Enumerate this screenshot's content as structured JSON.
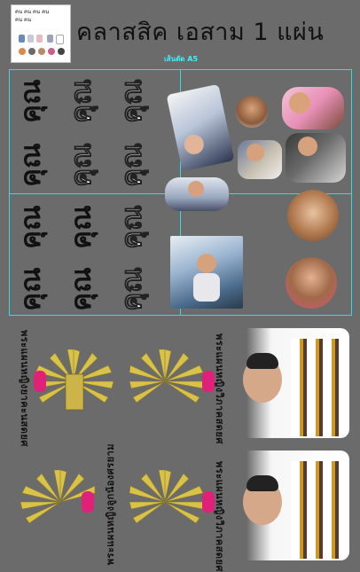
{
  "thumbnail": {
    "lines": [
      "คน คน คน คน",
      "คน คน"
    ]
  },
  "header": {
    "title": "คลาสสิค  เอสาม 1 แผ่น",
    "subtitle": "เส้นตัด A5"
  },
  "stickers": {
    "word": "คุณ"
  },
  "plaques": {
    "left_top": "พระแผนหญิงยาคะนสดยศ",
    "left_bottom": "พระแผนหญิงลูกน้องศรยาม",
    "right_top": "พระแผนหญิงวิภาคสดยศ",
    "right_bottom": "พระแผนหญิงวิภาคสดยศ"
  },
  "colors": {
    "background": "#6b6b6b",
    "cut_line": "#32dbe6",
    "emblem_gold": "#d8c24a",
    "emblem_pink": "#e0217a"
  }
}
